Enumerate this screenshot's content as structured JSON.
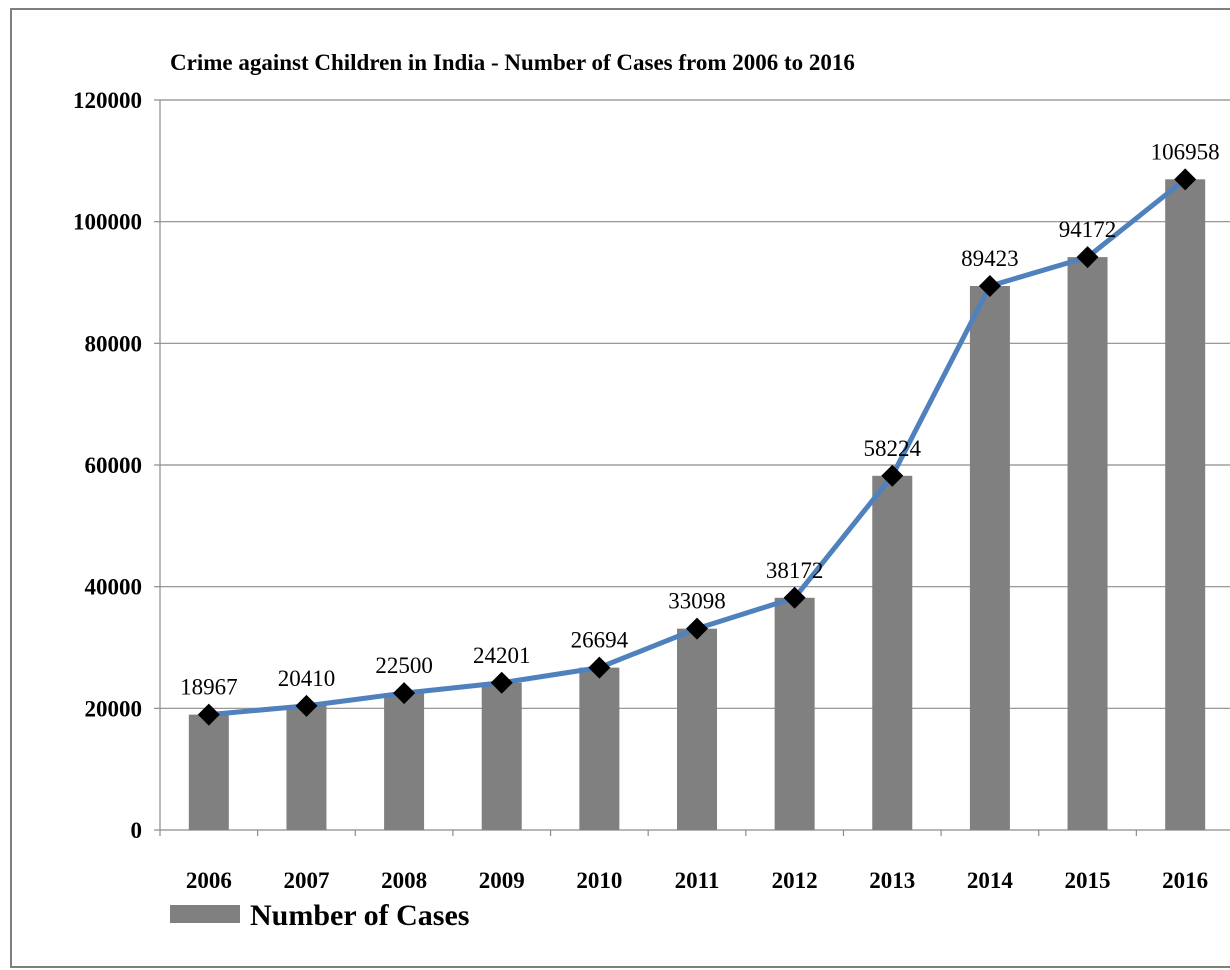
{
  "chart_data": {
    "type": "bar",
    "title": "Crime against Children in India - Number of Cases from 2006 to 2016",
    "categories": [
      "2006",
      "2007",
      "2008",
      "2009",
      "2010",
      "2011",
      "2012",
      "2013",
      "2014",
      "2015",
      "2016"
    ],
    "series": [
      {
        "name": "Number of Cases",
        "type": "bar",
        "color": "#808080",
        "values": [
          18967,
          20410,
          22500,
          24201,
          26694,
          33098,
          38172,
          58224,
          89423,
          94172,
          106958
        ]
      },
      {
        "type": "line",
        "color": "#4f81bd",
        "marker": "diamond",
        "marker_color": "#000000",
        "values": [
          18967,
          20410,
          22500,
          24201,
          26694,
          33098,
          38172,
          58224,
          89423,
          94172,
          106958
        ]
      }
    ],
    "data_labels": [
      "18967",
      "20410",
      "22500",
      "24201",
      "26694",
      "33098",
      "38172",
      "58224",
      "89423",
      "94172",
      "106958"
    ],
    "ylim": [
      0,
      120000
    ],
    "yticks": [
      "0",
      "20000",
      "40000",
      "60000",
      "80000",
      "100000",
      "120000"
    ],
    "grid": "horizontal",
    "legend": {
      "position": "bottom-left",
      "label": "Number of Cases"
    },
    "xlabel": "",
    "ylabel": ""
  }
}
